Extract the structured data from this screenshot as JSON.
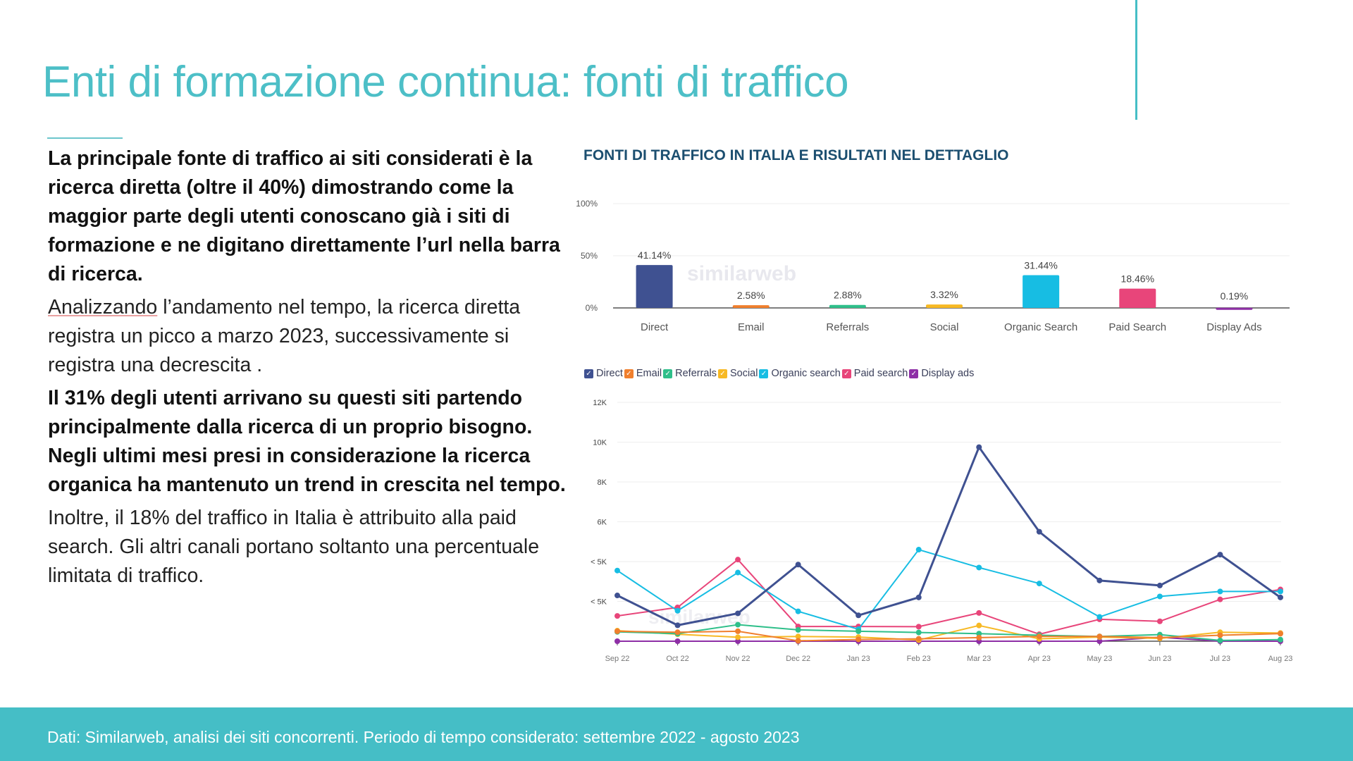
{
  "slide": {
    "title": "Enti di formazione continua: fonti di traffico",
    "paragraphs": [
      {
        "style": "bold",
        "text": "La principale fonte di traffico ai siti considerati è la ricerca diretta (oltre il 40%)  dimostrando come la maggior parte degli utenti conoscano già i siti di formazione e ne digitano direttamente l’url nella barra di ricerca."
      },
      {
        "style": "normal",
        "lead": "Analizzando",
        "text": " l’andamento nel tempo, la ricerca diretta registra un picco a marzo 2023, successivamente si registra una decrescita ."
      },
      {
        "style": "bold",
        "text": "Il 31% degli utenti arrivano su questi siti partendo principalmente dalla ricerca di un proprio bisogno. Negli ultimi mesi presi in considerazione la ricerca organica ha mantenuto un trend in crescita nel tempo."
      },
      {
        "style": "normal",
        "text": "Inoltre, il 18% del traffico in Italia è attribuito alla paid search. Gli altri canali portano soltanto una percentuale limitata di traffico."
      }
    ],
    "footer": "Dati: Similarweb, analisi dei siti concorrenti. Periodo di tempo considerato: settembre 2022 - agosto 2023",
    "chart_heading": "FONTI DI TRAFFICO IN ITALIA E RISULTATI NEL DETTAGLIO",
    "accent": "#45bec6"
  },
  "chart_data": [
    {
      "type": "bar",
      "categories": [
        "Direct",
        "Email",
        "Referrals",
        "Social",
        "Organic Search",
        "Paid Search",
        "Display Ads"
      ],
      "values": [
        41.14,
        2.58,
        2.88,
        3.32,
        31.44,
        18.46,
        0.19
      ],
      "data_labels": [
        "41.14%",
        "2.58%",
        "2.88%",
        "3.32%",
        "31.44%",
        "18.46%",
        "0.19%"
      ],
      "colors": [
        "#3f5191",
        "#f07f2d",
        "#2fbf8a",
        "#f7b924",
        "#17bde3",
        "#e8457a",
        "#8e2fa6"
      ],
      "yticks": [
        "0%",
        "50%",
        "100%"
      ],
      "ylim": [
        0,
        100
      ],
      "grid": true,
      "watermark": "similarweb"
    },
    {
      "type": "line",
      "x": [
        "Sep 22",
        "Oct 22",
        "Nov 22",
        "Dec 22",
        "Jan 23",
        "Feb 23",
        "Mar 23",
        "Apr 23",
        "May 23",
        "Jun 23",
        "Jul 23",
        "Aug 23"
      ],
      "yticks": [
        "< 5K",
        "< 5K",
        "6K",
        "8K",
        "10K",
        "12K"
      ],
      "ylim": [
        0,
        12000
      ],
      "grid": true,
      "legend_position": "top-left",
      "watermark": "similarweb",
      "series": [
        {
          "name": "Direct",
          "color": "#3f5191",
          "values": [
            2300,
            800,
            1400,
            3850,
            1300,
            2200,
            9750,
            5500,
            3050,
            2800,
            4350,
            2200
          ]
        },
        {
          "name": "Email",
          "color": "#f07f2d",
          "values": [
            500,
            450,
            500,
            20,
            90,
            120,
            180,
            240,
            240,
            180,
            300,
            380
          ]
        },
        {
          "name": "Referrals",
          "color": "#2fbf8a",
          "values": [
            470,
            380,
            830,
            570,
            500,
            440,
            380,
            300,
            240,
            330,
            40,
            80
          ]
        },
        {
          "name": "Social",
          "color": "#f7b924",
          "values": [
            530,
            350,
            200,
            240,
            210,
            60,
            790,
            120,
            210,
            140,
            450,
            410
          ]
        },
        {
          "name": "Organic search",
          "color": "#17bde3",
          "values": [
            3550,
            1530,
            3450,
            1500,
            600,
            4600,
            3700,
            2900,
            1220,
            2250,
            2500,
            2500
          ]
        },
        {
          "name": "Paid search",
          "color": "#e8457a",
          "values": [
            1270,
            1700,
            4100,
            740,
            740,
            730,
            1420,
            350,
            1100,
            1000,
            2100,
            2600
          ]
        },
        {
          "name": "Display ads",
          "color": "#8e2fa6",
          "values": [
            0,
            0,
            0,
            0,
            0,
            0,
            0,
            0,
            0,
            200,
            0,
            0
          ]
        }
      ]
    }
  ]
}
